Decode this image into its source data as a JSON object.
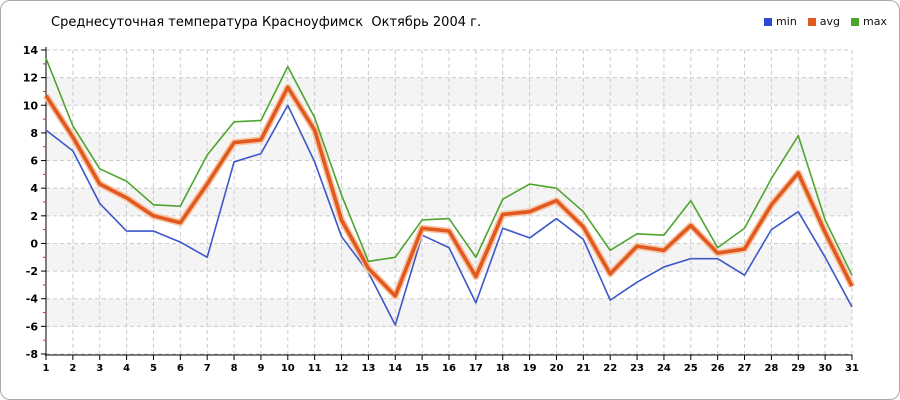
{
  "title": "Среднесуточная температура Красноуфимск  Октябрь 2004 г.",
  "legend": [
    {
      "label": "min",
      "color": "#2c49cf"
    },
    {
      "label": "avg",
      "color": "#e2591f"
    },
    {
      "label": "max",
      "color": "#4ea52e"
    }
  ],
  "chart_data": {
    "type": "line",
    "title": "Среднесуточная температура Красноуфимск  Октябрь 2004 г.",
    "xlabel": "",
    "ylabel": "",
    "x": [
      1,
      2,
      3,
      4,
      5,
      6,
      7,
      8,
      9,
      10,
      11,
      12,
      13,
      14,
      15,
      16,
      17,
      18,
      19,
      20,
      21,
      22,
      23,
      24,
      25,
      26,
      27,
      28,
      29,
      30,
      31
    ],
    "series": [
      {
        "name": "min",
        "color": "#3b57c9",
        "width": 1.6,
        "values": [
          8.2,
          6.7,
          2.9,
          0.9,
          0.9,
          0.1,
          -1.0,
          5.9,
          6.5,
          10.0,
          5.9,
          0.5,
          -2.1,
          -5.9,
          0.6,
          -0.3,
          -4.3,
          1.1,
          0.4,
          1.8,
          0.3,
          -4.1,
          -2.8,
          -1.7,
          -1.1,
          -1.1,
          -2.3,
          1.0,
          2.3,
          -1.0,
          -4.6
        ]
      },
      {
        "name": "avg",
        "color": "#e2591f",
        "halo": "#f7c5a4",
        "width": 3.6,
        "values": [
          10.7,
          7.7,
          4.3,
          3.3,
          2.0,
          1.5,
          4.3,
          7.3,
          7.5,
          11.3,
          8.2,
          1.7,
          -1.8,
          -3.8,
          1.1,
          0.9,
          -2.4,
          2.1,
          2.3,
          3.1,
          1.2,
          -2.2,
          -0.2,
          -0.5,
          1.3,
          -0.7,
          -0.4,
          2.8,
          5.1,
          0.8,
          -3.1
        ]
      },
      {
        "name": "max",
        "color": "#4ea52e",
        "width": 1.6,
        "values": [
          13.4,
          8.5,
          5.4,
          4.5,
          2.8,
          2.7,
          6.4,
          8.8,
          8.9,
          12.8,
          9.1,
          3.5,
          -1.3,
          -1.0,
          1.7,
          1.8,
          -1.0,
          3.2,
          4.3,
          4.0,
          2.3,
          -0.5,
          0.7,
          0.6,
          3.1,
          -0.3,
          1.1,
          4.7,
          7.8,
          1.7,
          -2.3
        ]
      }
    ],
    "ylim": [
      -8,
      14
    ],
    "y_ticks": [
      14,
      12,
      10,
      8,
      6,
      4,
      2,
      0,
      -2,
      -4,
      -6,
      -8
    ],
    "y_minor_ticks": [
      13,
      11,
      9,
      7,
      5,
      3,
      1,
      -1,
      -3,
      -5,
      -7
    ],
    "grid": "dashed",
    "legend_position": "top-right",
    "colors": {
      "grid_dash": "#cbcbcb",
      "band_gray": "#f4f4f4",
      "axis": "#000000",
      "minor_tick_red": "#d22f1e",
      "tick_label": "#000000"
    }
  }
}
